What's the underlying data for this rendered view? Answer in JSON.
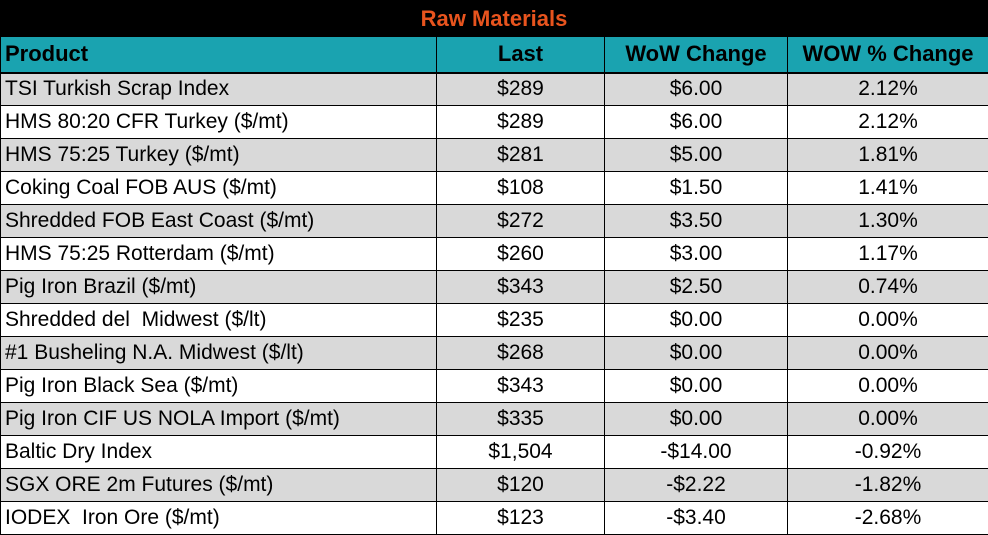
{
  "title": "Raw Materials",
  "headers": {
    "product": "Product",
    "last": "Last",
    "wow_change": "WoW Change",
    "wow_pct_change": "WOW % Change"
  },
  "rows": [
    {
      "product": "TSI Turkish Scrap Index",
      "last": "$289",
      "wow_change": "$6.00",
      "wow_pct_change": "2.12%"
    },
    {
      "product": "HMS 80:20 CFR Turkey ($/mt)",
      "last": "$289",
      "wow_change": "$6.00",
      "wow_pct_change": "2.12%"
    },
    {
      "product": "HMS 75:25 Turkey ($/mt)",
      "last": "$281",
      "wow_change": "$5.00",
      "wow_pct_change": "1.81%"
    },
    {
      "product": "Coking Coal FOB AUS ($/mt)",
      "last": "$108",
      "wow_change": "$1.50",
      "wow_pct_change": "1.41%"
    },
    {
      "product": "Shredded FOB East Coast ($/mt)",
      "last": "$272",
      "wow_change": "$3.50",
      "wow_pct_change": "1.30%"
    },
    {
      "product": "HMS 75:25 Rotterdam ($/mt)",
      "last": "$260",
      "wow_change": "$3.00",
      "wow_pct_change": "1.17%"
    },
    {
      "product": "Pig Iron Brazil ($/mt)",
      "last": "$343",
      "wow_change": "$2.50",
      "wow_pct_change": "0.74%"
    },
    {
      "product": "Shredded del  Midwest ($/lt)",
      "last": "$235",
      "wow_change": "$0.00",
      "wow_pct_change": "0.00%"
    },
    {
      "product": "#1 Busheling N.A. Midwest ($/lt)",
      "last": "$268",
      "wow_change": "$0.00",
      "wow_pct_change": "0.00%"
    },
    {
      "product": "Pig Iron Black Sea ($/mt)",
      "last": "$343",
      "wow_change": "$0.00",
      "wow_pct_change": "0.00%"
    },
    {
      "product": "Pig Iron CIF US NOLA Import ($/mt)",
      "last": "$335",
      "wow_change": "$0.00",
      "wow_pct_change": "0.00%"
    },
    {
      "product": "Baltic Dry Index",
      "last": "$1,504",
      "wow_change": "-$14.00",
      "wow_pct_change": "-0.92%"
    },
    {
      "product": "SGX ORE 2m Futures ($/mt)",
      "last": "$120",
      "wow_change": "-$2.22",
      "wow_pct_change": "-1.82%"
    },
    {
      "product": "IODEX  Iron Ore ($/mt)",
      "last": "$123",
      "wow_change": "-$3.40",
      "wow_pct_change": "-2.68%"
    }
  ],
  "colors": {
    "title_bg": "#000000",
    "title_text": "#e8541e",
    "header_bg": "#1aa3b0",
    "row_alt_bg": "#d9d9d9"
  }
}
